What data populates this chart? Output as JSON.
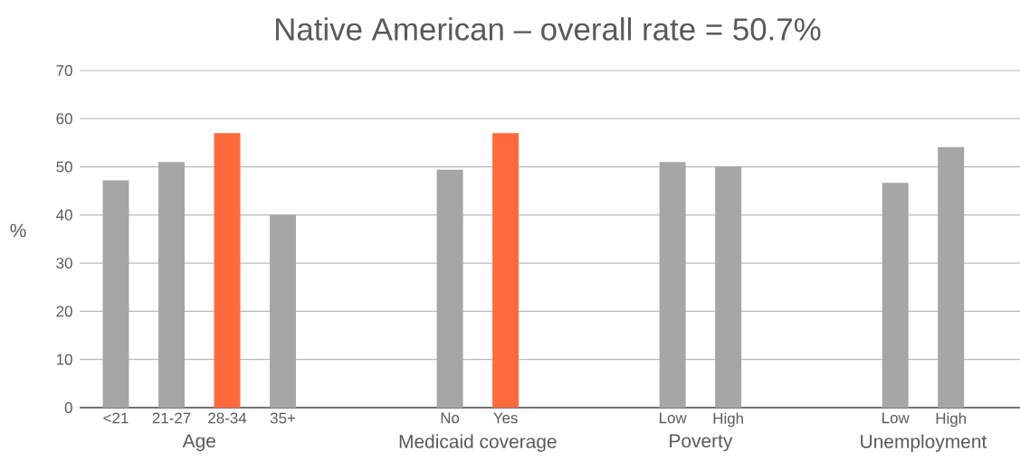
{
  "chart_data": {
    "type": "bar",
    "title": "Native American – overall rate = 50.7%",
    "ylabel": "%",
    "categories": [
      "<21",
      "21-27",
      "28-34",
      "35+",
      null,
      null,
      "No",
      "Yes",
      null,
      null,
      "Low",
      "High",
      null,
      null,
      "Low",
      "High"
    ],
    "values": [
      47.2,
      51.0,
      57.0,
      40.0,
      null,
      null,
      49.4,
      57.0,
      null,
      null,
      51.0,
      50.1,
      null,
      null,
      46.7,
      54.1
    ],
    "colors": [
      "#a6a6a6",
      "#a6a6a6",
      "#ff6a3c",
      "#a6a6a6",
      null,
      null,
      "#a6a6a6",
      "#ff6a3c",
      null,
      null,
      "#a6a6a6",
      "#a6a6a6",
      null,
      null,
      "#a6a6a6",
      "#a6a6a6"
    ],
    "annotations": [
      "Age",
      "Medicaid coverage",
      "Poverty",
      "Unemployment"
    ],
    "ylim": [
      0,
      70
    ],
    "yticks": [
      0,
      10,
      20,
      30,
      40,
      50,
      60,
      70
    ],
    "grid": "y"
  }
}
